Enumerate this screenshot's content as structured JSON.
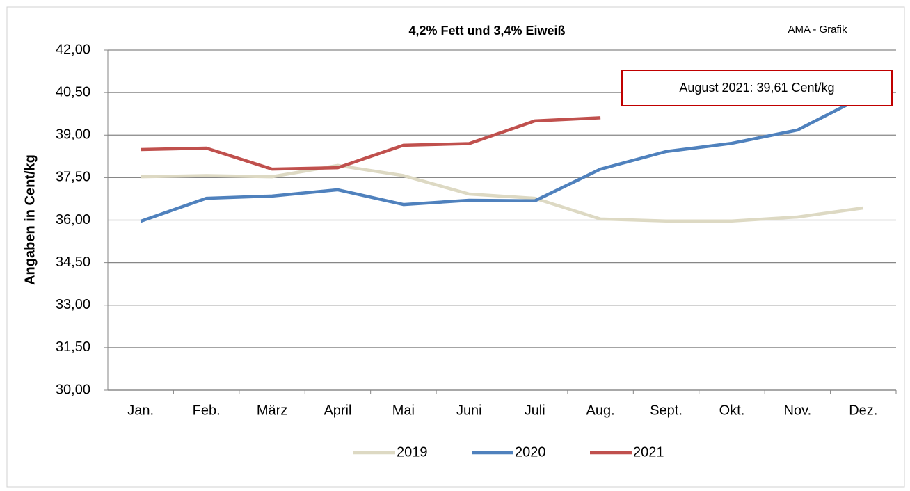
{
  "chart_data": {
    "type": "line",
    "title": "4,2% Fett und 3,4% Eiweiß",
    "source_note": "AMA - Grafik",
    "annotation": "August 2021: 39,61 Cent/kg",
    "y_label": "Angaben in Cent/kg",
    "categories": [
      "Jan.",
      "Feb.",
      "März",
      "April",
      "Mai",
      "Juni",
      "Juli",
      "Aug.",
      "Sept.",
      "Okt.",
      "Nov.",
      "Dez."
    ],
    "series": [
      {
        "name": "2019",
        "color": "#ddd9c3",
        "values": [
          37.53,
          37.57,
          37.53,
          37.93,
          37.57,
          36.92,
          36.77,
          36.04,
          35.97,
          35.97,
          36.11,
          36.43
        ]
      },
      {
        "name": "2020",
        "color": "#4f81bd",
        "values": [
          35.96,
          36.77,
          36.85,
          37.07,
          36.55,
          36.7,
          36.68,
          37.8,
          38.42,
          38.71,
          39.18,
          40.36
        ]
      },
      {
        "name": "2021",
        "color": "#c0504d",
        "values": [
          38.49,
          38.54,
          37.8,
          37.85,
          38.64,
          38.7,
          39.5,
          39.61,
          null,
          null,
          null,
          null
        ]
      }
    ],
    "ylim": [
      30,
      42
    ],
    "yticks": [
      {
        "value": 30,
        "label": "30,00"
      },
      {
        "value": 31.5,
        "label": "31,50"
      },
      {
        "value": 33,
        "label": "33,00"
      },
      {
        "value": 34.5,
        "label": "34,50"
      },
      {
        "value": 36,
        "label": "36,00"
      },
      {
        "value": 37.5,
        "label": "37,50"
      },
      {
        "value": 39,
        "label": "39,00"
      },
      {
        "value": 40.5,
        "label": "40,50"
      },
      {
        "value": 42,
        "label": "42,00"
      }
    ],
    "grid": true,
    "legend": "bottom"
  }
}
